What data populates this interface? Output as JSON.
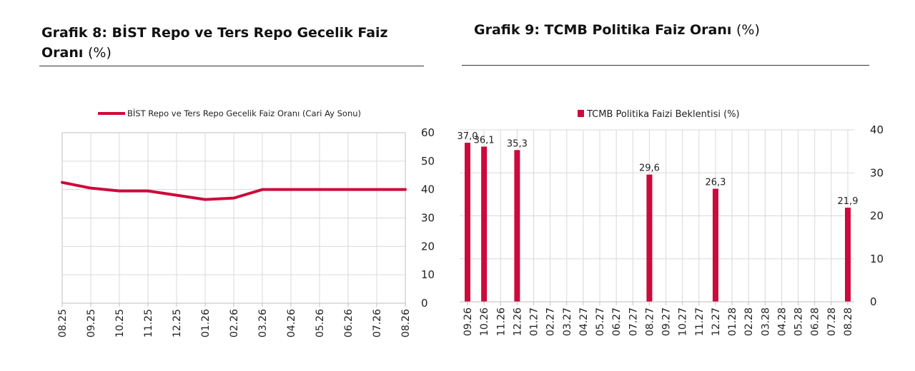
{
  "charts": [
    {
      "title_main": "Grafik 8:  BİST Repo ve Ters Repo Gecelik Faiz Oranı",
      "title_unit": "(%)"
    },
    {
      "title_main": "Grafik 9: TCMB Politika Faiz Oranı",
      "title_unit": "(%)"
    }
  ],
  "colors": {
    "series": "#cc0a3b",
    "grid": "#d9d9d9",
    "axis": "#bfbfbf"
  },
  "chart_data": [
    {
      "type": "line",
      "title": "Grafik 8:  BİST Repo ve Ters Repo Gecelik Faiz Oranı (%)",
      "categories": [
        "08.25",
        "09.25",
        "10.25",
        "11.25",
        "12.25",
        "01.26",
        "02.26",
        "03.26",
        "04.26",
        "05.26",
        "06.26",
        "07.26",
        "08.26"
      ],
      "series": [
        {
          "name": "BİST Repo ve Ters Repo Gecelik Faiz Oranı (Cari Ay Sonu)",
          "values": [
            42.5,
            40.5,
            39.5,
            39.5,
            38.0,
            36.5,
            37.0,
            40.0,
            40.0,
            40.0,
            40.0,
            40.0,
            40.0
          ]
        }
      ],
      "ylim": [
        0,
        60
      ],
      "yticks": [
        "0",
        "10",
        "20",
        "30",
        "40",
        "50",
        "60"
      ],
      "y_axis_position": "right",
      "legend": "top",
      "grid": true
    },
    {
      "type": "bar",
      "title": "Grafik 9: TCMB Politika Faiz Oranı (%)",
      "categories": [
        "09.26",
        "10.26",
        "11.26",
        "12.26",
        "01.27",
        "02.27",
        "03.27",
        "04.27",
        "05.27",
        "06.27",
        "07.27",
        "08.27",
        "09.27",
        "10.27",
        "11.27",
        "12.27",
        "01.28",
        "02.28",
        "03.28",
        "04.28",
        "05.28",
        "06.28",
        "07.28",
        "08.28"
      ],
      "series": [
        {
          "name": "TCMB Politika Faizi Beklentisi (%)",
          "values": [
            37.0,
            36.1,
            null,
            35.3,
            null,
            null,
            null,
            null,
            null,
            null,
            null,
            29.6,
            null,
            null,
            null,
            26.3,
            null,
            null,
            null,
            null,
            null,
            null,
            null,
            21.9
          ],
          "labels": [
            "37,0",
            "36,1",
            "",
            "35,3",
            "",
            "",
            "",
            "",
            "",
            "",
            "",
            "29,6",
            "",
            "",
            "",
            "26,3",
            "",
            "",
            "",
            "",
            "",
            "",
            "",
            "21,9"
          ]
        }
      ],
      "ylim": [
        0,
        40
      ],
      "yticks": [
        "0",
        "10",
        "20",
        "30",
        "40"
      ],
      "y_axis_position": "right",
      "legend": "top",
      "grid": true
    }
  ]
}
